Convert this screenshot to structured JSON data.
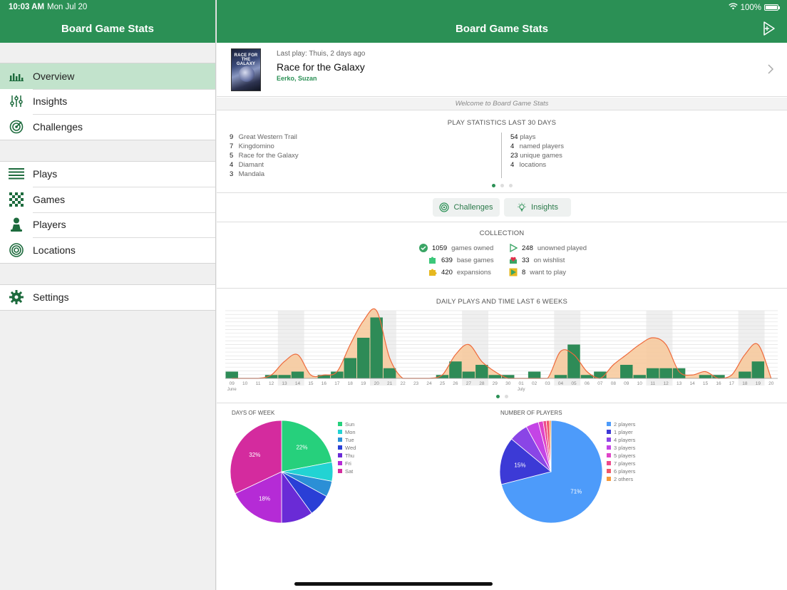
{
  "status": {
    "time": "10:03 AM",
    "date": "Mon Jul 20",
    "battery": "100%"
  },
  "sidebar": {
    "title": "Board Game Stats",
    "groups": [
      [
        {
          "label": "Overview",
          "icon": "bar-chart-icon",
          "active": true
        },
        {
          "label": "Insights",
          "icon": "sliders-icon"
        },
        {
          "label": "Challenges",
          "icon": "target-icon"
        }
      ],
      [
        {
          "label": "Plays",
          "icon": "list-icon"
        },
        {
          "label": "Games",
          "icon": "checkerboard-icon"
        },
        {
          "label": "Players",
          "icon": "pawn-icon"
        },
        {
          "label": "Locations",
          "icon": "rings-icon"
        }
      ],
      [
        {
          "label": "Settings",
          "icon": "gear-icon"
        }
      ]
    ]
  },
  "main": {
    "title": "Board Game Stats",
    "last_play": {
      "caption": "Last play: Thuis, 2 days ago",
      "game": "Race for the Galaxy",
      "players": "Eerko, Suzan",
      "cover_text": "RACE FOR THE GALAXY"
    },
    "welcome": "Welcome to Board Game Stats",
    "stats30": {
      "title": "PLAY STATISTICS LAST 30 DAYS",
      "top_games": [
        {
          "count": "9",
          "name": "Great Western Trail"
        },
        {
          "count": "7",
          "name": "Kingdomino"
        },
        {
          "count": "5",
          "name": "Race for the Galaxy"
        },
        {
          "count": "4",
          "name": "Diamant"
        },
        {
          "count": "3",
          "name": "Mandala"
        }
      ],
      "summary": [
        {
          "count": "54",
          "label": "plays"
        },
        {
          "count": "4",
          "label": "named players"
        },
        {
          "count": "23",
          "label": "unique games"
        },
        {
          "count": "4",
          "label": "locations"
        }
      ]
    },
    "quick": {
      "challenges": "Challenges",
      "insights": "Insights"
    },
    "collection": {
      "title": "COLLECTION",
      "left": [
        {
          "count": "1059",
          "label": "games owned"
        },
        {
          "count": "639",
          "label": "base games"
        },
        {
          "count": "420",
          "label": "expansions"
        }
      ],
      "right": [
        {
          "count": "248",
          "label": "unowned played"
        },
        {
          "count": "33",
          "label": "on wishlist"
        },
        {
          "count": "8",
          "label": "want to play"
        }
      ]
    }
  },
  "colors": {
    "accent": "#2b9055",
    "bar": "#2e8b57",
    "curve": "#ee6a3c",
    "curve_fill": "#f7c89a"
  },
  "chart_data": [
    {
      "type": "bar",
      "title": "DAILY PLAYS AND TIME LAST 6 WEEKS",
      "x_tick_labels": [
        "09",
        "10",
        "11",
        "12",
        "13",
        "14",
        "15",
        "16",
        "17",
        "18",
        "19",
        "20",
        "21",
        "22",
        "23",
        "24",
        "25",
        "26",
        "27",
        "28",
        "29",
        "30",
        "01",
        "02",
        "03",
        "04",
        "05",
        "06",
        "07",
        "08",
        "09",
        "10",
        "11",
        "12",
        "13",
        "14",
        "15",
        "16",
        "17",
        "18",
        "19",
        "20"
      ],
      "month_labels": [
        {
          "label": "June",
          "at": "09"
        },
        {
          "label": "July",
          "at": "01"
        }
      ],
      "series": [
        {
          "values": [
            1,
            0,
            0,
            0.5,
            0.5,
            1,
            0,
            0.5,
            1,
            3,
            6,
            9,
            1.5,
            0,
            0,
            0,
            0.5,
            2.5,
            1,
            2,
            0.5,
            0.5,
            0,
            1,
            0,
            0.5,
            5,
            0.5,
            1,
            0,
            2,
            0.5,
            1.5,
            1.5,
            1.5,
            0,
            0.5,
            0.5,
            0,
            1,
            2.5,
            0
          ]
        },
        {
          "values": [
            0,
            0,
            0,
            0.5,
            2.5,
            3.5,
            0.5,
            0.5,
            1,
            5,
            8.5,
            10,
            3,
            0,
            0,
            0,
            0.5,
            3.5,
            5,
            2.5,
            1,
            0,
            0,
            0,
            0,
            4,
            3.5,
            1,
            0,
            2,
            3.5,
            5,
            6,
            5,
            1,
            0.5,
            1,
            0,
            0.5,
            3.5,
            5,
            0
          ]
        }
      ],
      "ylim": [
        0,
        10
      ]
    },
    {
      "type": "pie",
      "title": "DAYS OF WEEK",
      "categories": [
        "Sun",
        "Mon",
        "Tue",
        "Wed",
        "Thu",
        "Fri",
        "Sat"
      ],
      "values": [
        22,
        6,
        5,
        7,
        10,
        18,
        32
      ],
      "colors": [
        "#26d07c",
        "#22d3d3",
        "#2b8fd6",
        "#2a3fd6",
        "#6a2bd6",
        "#b52bd6",
        "#d42b9e"
      ],
      "labels": [
        "22%",
        "",
        "",
        "",
        "",
        "18%",
        "32%"
      ]
    },
    {
      "type": "pie",
      "title": "NUMBER OF PLAYERS",
      "categories": [
        "2 players",
        "1 player",
        "4 players",
        "3 players",
        "5 players",
        "7 players",
        "6 players",
        "2 others"
      ],
      "values": [
        71,
        15,
        6,
        4,
        1.5,
        1,
        1,
        0.5
      ],
      "colors": [
        "#4d9bfa",
        "#3c3ad6",
        "#8a45e6",
        "#c444e6",
        "#e044c8",
        "#ee4a8c",
        "#f0566a",
        "#f59a3c"
      ],
      "labels": [
        "71%",
        "15%",
        "",
        "",
        "",
        "",
        "",
        ""
      ]
    }
  ]
}
